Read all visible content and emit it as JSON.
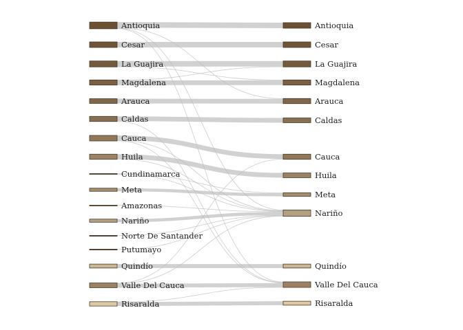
{
  "diagram": {
    "type": "sankey",
    "left_nodes": [
      {
        "id": "L0",
        "label": "Antioquia",
        "color": "#6b5034"
      },
      {
        "id": "L1",
        "label": "Cesar",
        "color": "#6f5437"
      },
      {
        "id": "L2",
        "label": "La Guajira",
        "color": "#735a3c"
      },
      {
        "id": "L3",
        "label": "Magdalena",
        "color": "#7a6044"
      },
      {
        "id": "L4",
        "label": "Arauca",
        "color": "#80674a"
      },
      {
        "id": "L5",
        "label": "Caldas",
        "color": "#876f51"
      },
      {
        "id": "L6",
        "label": "Cauca",
        "color": "#907859"
      },
      {
        "id": "L7",
        "label": "Huila",
        "color": "#9a8465"
      },
      {
        "id": "L8",
        "label": "Cundinamarca",
        "color": "#978062"
      },
      {
        "id": "L9",
        "label": "Meta",
        "color": "#a38e70"
      },
      {
        "id": "L10",
        "label": "Amazonas",
        "color": "#a8957a"
      },
      {
        "id": "L11",
        "label": "Nariño",
        "color": "#b39f82"
      },
      {
        "id": "L12",
        "label": "Norte De Santander",
        "color": "#706050"
      },
      {
        "id": "L13",
        "label": "Putumayo",
        "color": "#706050"
      },
      {
        "id": "L14",
        "label": "Quindío",
        "color": "#cbb995"
      },
      {
        "id": "L15",
        "label": "Valle Del Cauca",
        "color": "#9b8264"
      },
      {
        "id": "L16",
        "label": "Risaralda",
        "color": "#dccaa6"
      }
    ],
    "right_nodes": [
      {
        "id": "R0",
        "label": "Antioquia",
        "color": "#6b5034"
      },
      {
        "id": "R1",
        "label": "Cesar",
        "color": "#6f5437"
      },
      {
        "id": "R2",
        "label": "La Guajira",
        "color": "#735a3c"
      },
      {
        "id": "R3",
        "label": "Magdalena",
        "color": "#7a6044"
      },
      {
        "id": "R4",
        "label": "Arauca",
        "color": "#80674a"
      },
      {
        "id": "R5",
        "label": "Caldas",
        "color": "#876f51"
      },
      {
        "id": "R6",
        "label": "Cauca",
        "color": "#907859"
      },
      {
        "id": "R7",
        "label": "Huila",
        "color": "#9a8465"
      },
      {
        "id": "R8",
        "label": "Meta",
        "color": "#a38e70"
      },
      {
        "id": "R9",
        "label": "Nariño",
        "color": "#b39f82"
      },
      {
        "id": "R10",
        "label": "Quindío",
        "color": "#cbb995"
      },
      {
        "id": "R11",
        "label": "Valle Del Cauca",
        "color": "#9b8264"
      },
      {
        "id": "R12",
        "label": "Risaralda",
        "color": "#dccaa6"
      }
    ],
    "links": [
      {
        "source": "L0",
        "target": "R0",
        "value": 7
      },
      {
        "source": "L0",
        "target": "R4",
        "value": 0.5
      },
      {
        "source": "L0",
        "target": "R9",
        "value": 0.5
      },
      {
        "source": "L0",
        "target": "R11",
        "value": 0.5
      },
      {
        "source": "L1",
        "target": "R1",
        "value": 7
      },
      {
        "source": "L2",
        "target": "R2",
        "value": 7
      },
      {
        "source": "L2",
        "target": "R3",
        "value": 0.5
      },
      {
        "source": "L3",
        "target": "R3",
        "value": 6
      },
      {
        "source": "L3",
        "target": "R2",
        "value": 0.5
      },
      {
        "source": "L4",
        "target": "R4",
        "value": 6
      },
      {
        "source": "L5",
        "target": "R5",
        "value": 6
      },
      {
        "source": "L5",
        "target": "R11",
        "value": 0.5
      },
      {
        "source": "L6",
        "target": "R6",
        "value": 6
      },
      {
        "source": "L6",
        "target": "R9",
        "value": 0.5
      },
      {
        "source": "L6",
        "target": "R11",
        "value": 0.5
      },
      {
        "source": "L7",
        "target": "R7",
        "value": 6
      },
      {
        "source": "L7",
        "target": "R9",
        "value": 0.5
      },
      {
        "source": "L8",
        "target": "R8",
        "value": 0.5
      },
      {
        "source": "L8",
        "target": "R9",
        "value": 0.5
      },
      {
        "source": "L9",
        "target": "R8",
        "value": 4
      },
      {
        "source": "L10",
        "target": "R9",
        "value": 0.5
      },
      {
        "source": "L11",
        "target": "R9",
        "value": 4
      },
      {
        "source": "L12",
        "target": "R9",
        "value": 0.5
      },
      {
        "source": "L13",
        "target": "R9",
        "value": 0.5
      },
      {
        "source": "L14",
        "target": "R10",
        "value": 5
      },
      {
        "source": "L15",
        "target": "R11",
        "value": 5
      },
      {
        "source": "L15",
        "target": "R9",
        "value": 0.5
      },
      {
        "source": "L15",
        "target": "R6",
        "value": 0.5
      },
      {
        "source": "L16",
        "target": "R12",
        "value": 5
      },
      {
        "source": "L16",
        "target": "R11",
        "value": 0.5
      }
    ]
  }
}
